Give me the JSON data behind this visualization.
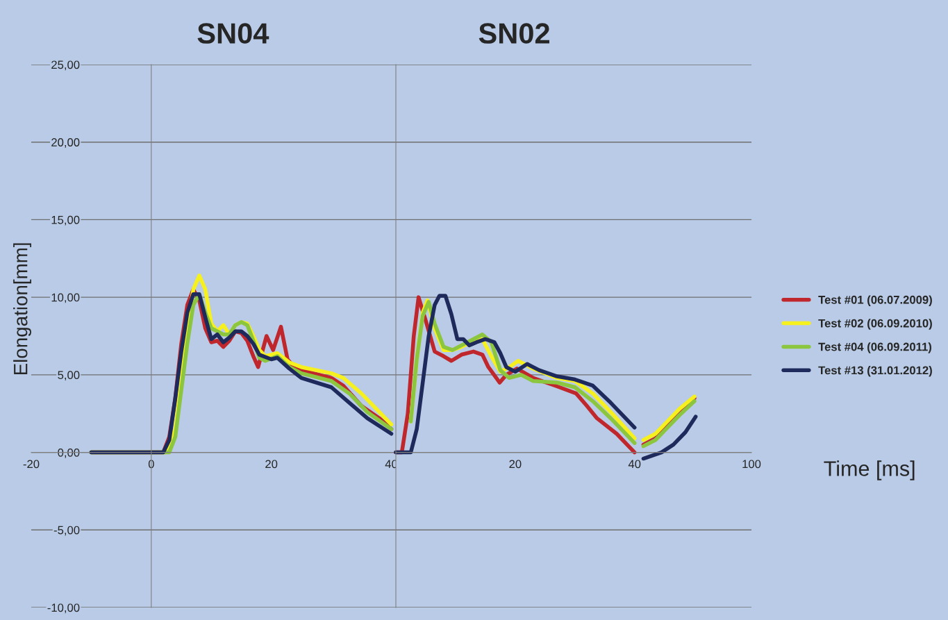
{
  "chart_data": [
    {
      "type": "line",
      "title": "SN04",
      "xlabel": "Time [ms]",
      "ylabel": "Elongation[mm]",
      "xlim": [
        -20,
        100
      ],
      "xticks": [
        -20,
        0,
        20,
        40,
        100
      ],
      "ylim": [
        -10,
        25
      ],
      "yticks": [
        {
          "value": -10,
          "label": "-10,00"
        },
        {
          "value": -5,
          "label": "-5,00"
        },
        {
          "value": 0,
          "label": "0,00"
        },
        {
          "value": 5,
          "label": "5,00"
        },
        {
          "value": 10,
          "label": "10,00"
        },
        {
          "value": 15,
          "label": "15,00"
        },
        {
          "value": 20,
          "label": "20,00"
        },
        {
          "value": 25,
          "label": "25,00"
        }
      ],
      "grid": "y",
      "legend": "right",
      "series": [
        {
          "name": "Test #01 (06.07.2009)",
          "color": "#c0272d",
          "x": [
            -10,
            2,
            3,
            4,
            5,
            6,
            7,
            8,
            9,
            10,
            11,
            12,
            13,
            14,
            15,
            16,
            17,
            17.8,
            18.5,
            19.2,
            20.3,
            21.6,
            22.7,
            24,
            26,
            30,
            32,
            35,
            38,
            40,
            null,
            82,
            84,
            86,
            88,
            90.5
          ],
          "values": [
            0,
            0,
            1,
            3.5,
            7,
            9.5,
            10.5,
            9.8,
            8,
            7.1,
            7.2,
            6.8,
            7.2,
            7.8,
            7.7,
            7.2,
            6.2,
            5.5,
            6.5,
            7.5,
            6.6,
            8.1,
            6,
            5.4,
            5.2,
            4.8,
            4.3,
            3,
            2.2,
            1.5,
            null,
            0.5,
            0.9,
            1.8,
            2.6,
            3.5
          ]
        },
        {
          "name": "Test #02 (06.09.2010)",
          "color": "#f5f01e",
          "x": [
            -10,
            2.5,
            4,
            5,
            6,
            7,
            8,
            9,
            10,
            11,
            12,
            13,
            14,
            15,
            16,
            17,
            18,
            19,
            21,
            23,
            25,
            30,
            32,
            35,
            38,
            40,
            null,
            82,
            84,
            86,
            88,
            90.5
          ],
          "values": [
            0,
            0,
            1.5,
            4.5,
            8,
            10.5,
            11.4,
            10.5,
            8.3,
            7.8,
            8.2,
            7.6,
            8.2,
            8.4,
            8.3,
            7.5,
            6.6,
            6.2,
            6.4,
            5.8,
            5.5,
            5.1,
            4.8,
            3.8,
            2.6,
            1.8,
            null,
            0.8,
            1.2,
            2,
            2.8,
            3.6
          ]
        },
        {
          "name": "Test #04 (06.09.2011)",
          "color": "#8cc63f",
          "x": [
            -10,
            3,
            4,
            5,
            6,
            7,
            8,
            9,
            10,
            11,
            12,
            13,
            14,
            15,
            16,
            17,
            18,
            19,
            21,
            23,
            25,
            30,
            33,
            36,
            40,
            null,
            82,
            84,
            86,
            88,
            90.5
          ],
          "values": [
            0,
            0,
            1,
            4,
            7,
            9.5,
            10.2,
            9,
            8,
            7.8,
            7.6,
            7.6,
            8.2,
            8.4,
            8.2,
            7.2,
            6.1,
            5.9,
            6.2,
            5.5,
            5.1,
            4.6,
            3.8,
            2.6,
            1.5,
            null,
            0.4,
            0.8,
            1.6,
            2.4,
            3.3
          ]
        },
        {
          "name": "Test #13 (31.01.2012)",
          "color": "#1f2a5c",
          "x": [
            -10,
            2,
            3,
            4,
            5,
            6,
            7,
            8,
            9,
            10,
            11,
            12,
            13,
            14,
            15,
            16,
            17,
            18,
            20,
            21,
            23,
            25,
            30,
            33,
            36,
            40,
            null,
            82,
            85,
            87,
            89,
            90.7
          ],
          "values": [
            0,
            0,
            0.8,
            3.5,
            6.5,
            9,
            10.2,
            10.2,
            8.7,
            7.3,
            7.6,
            7.1,
            7.4,
            7.8,
            7.8,
            7.5,
            7,
            6.3,
            6,
            6.1,
            5.4,
            4.8,
            4.2,
            3.2,
            2.2,
            1.2,
            null,
            -0.4,
            0,
            0.5,
            1.3,
            2.3
          ]
        }
      ]
    },
    {
      "type": "line",
      "title": "SN02",
      "xlim": [
        0,
        40.5
      ],
      "xticks": [
        20,
        40
      ],
      "ylim": [
        -10,
        25
      ],
      "yticks": [
        -10,
        -5,
        0,
        5,
        10,
        15,
        20,
        25
      ],
      "grid": "y",
      "tick_labels": "x",
      "series": [
        {
          "color": "#c0272d",
          "x": [
            0,
            1,
            2,
            3,
            3.8,
            5,
            6.5,
            8,
            9.3,
            11,
            13,
            14.5,
            15.5,
            17.4,
            18.5,
            20.3,
            23,
            26.7,
            30.2,
            32,
            33.7,
            37,
            40
          ],
          "values": [
            0,
            0,
            2.5,
            7.5,
            10,
            8.5,
            6.5,
            6.2,
            5.9,
            6.3,
            6.5,
            6.3,
            5.5,
            4.5,
            5,
            5.4,
            4.8,
            4.3,
            3.8,
            3,
            2.2,
            1.2,
            0
          ]
        },
        {
          "color": "#f5f01e",
          "x": [
            2.5,
            3.5,
            4.5,
            5.3,
            6.5,
            8,
            9.5,
            11,
            13,
            14.5,
            16,
            17.5,
            19,
            20.5,
            23,
            27,
            30,
            33,
            36,
            40
          ],
          "values": [
            2,
            6,
            9,
            9.8,
            8,
            6.6,
            6.6,
            6.8,
            7.2,
            7.3,
            6.2,
            5.2,
            5.5,
            5.9,
            5.4,
            4.8,
            4.6,
            3.8,
            2.6,
            0.9
          ]
        },
        {
          "color": "#8cc63f",
          "x": [
            2.5,
            3.5,
            4.5,
            5.5,
            6.5,
            8,
            9.5,
            11,
            13,
            14.5,
            16,
            17.5,
            19,
            21,
            23,
            27,
            30,
            33,
            36,
            40
          ],
          "values": [
            2,
            6,
            8.8,
            9.7,
            8.3,
            6.8,
            6.6,
            6.9,
            7.3,
            7.6,
            7.1,
            5.3,
            4.8,
            5,
            4.6,
            4.5,
            4.2,
            3.3,
            2.2,
            0.6
          ]
        },
        {
          "color": "#1f2a5c",
          "x": [
            0,
            2.5,
            3.5,
            4.5,
            5.5,
            6.5,
            7.3,
            8.3,
            9.3,
            10.3,
            11.3,
            12.3,
            13.5,
            15,
            16.5,
            17.5,
            18.5,
            20,
            22,
            24,
            27,
            30,
            33,
            36,
            40
          ],
          "values": [
            0,
            0,
            1.5,
            4.5,
            7.5,
            9.5,
            10.1,
            10.1,
            8.9,
            7.3,
            7.3,
            6.9,
            7.1,
            7.3,
            7.1,
            6.4,
            5.5,
            5.2,
            5.7,
            5.3,
            4.9,
            4.7,
            4.3,
            3.2,
            1.6
          ]
        }
      ]
    }
  ]
}
